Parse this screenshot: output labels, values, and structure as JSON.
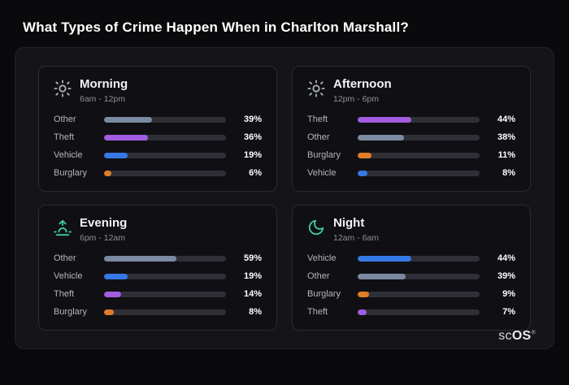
{
  "page": {
    "title": "What Types of Crime Happen When in Charlton Marshall?"
  },
  "brand": {
    "prefix": "sc",
    "suffix": "OS",
    "reg": "®"
  },
  "colors": {
    "other": "#7b8aa1",
    "theft": "#a25de0",
    "vehicle": "#3579e6",
    "burglary": "#e07d28"
  },
  "cards": [
    {
      "title": "Morning",
      "time": "6am - 12pm",
      "icon": "sun-icon",
      "rows": [
        {
          "label": "Other",
          "value": 39,
          "pct": "39%",
          "color": "other"
        },
        {
          "label": "Theft",
          "value": 36,
          "pct": "36%",
          "color": "theft"
        },
        {
          "label": "Vehicle",
          "value": 19,
          "pct": "19%",
          "color": "vehicle"
        },
        {
          "label": "Burglary",
          "value": 6,
          "pct": "6%",
          "color": "burglary"
        }
      ]
    },
    {
      "title": "Afternoon",
      "time": "12pm - 6pm",
      "icon": "sun-icon",
      "rows": [
        {
          "label": "Theft",
          "value": 44,
          "pct": "44%",
          "color": "theft"
        },
        {
          "label": "Other",
          "value": 38,
          "pct": "38%",
          "color": "other"
        },
        {
          "label": "Burglary",
          "value": 11,
          "pct": "11%",
          "color": "burglary"
        },
        {
          "label": "Vehicle",
          "value": 8,
          "pct": "8%",
          "color": "vehicle"
        }
      ]
    },
    {
      "title": "Evening",
      "time": "6pm - 12am",
      "icon": "sunrise-icon",
      "rows": [
        {
          "label": "Other",
          "value": 59,
          "pct": "59%",
          "color": "other"
        },
        {
          "label": "Vehicle",
          "value": 19,
          "pct": "19%",
          "color": "vehicle"
        },
        {
          "label": "Theft",
          "value": 14,
          "pct": "14%",
          "color": "theft"
        },
        {
          "label": "Burglary",
          "value": 8,
          "pct": "8%",
          "color": "burglary"
        }
      ]
    },
    {
      "title": "Night",
      "time": "12am - 6am",
      "icon": "moon-icon",
      "rows": [
        {
          "label": "Vehicle",
          "value": 44,
          "pct": "44%",
          "color": "vehicle"
        },
        {
          "label": "Other",
          "value": 39,
          "pct": "39%",
          "color": "other"
        },
        {
          "label": "Burglary",
          "value": 9,
          "pct": "9%",
          "color": "burglary"
        },
        {
          "label": "Theft",
          "value": 7,
          "pct": "7%",
          "color": "theft"
        }
      ]
    }
  ],
  "chart_data": [
    {
      "type": "bar",
      "title": "Morning",
      "subtitle": "6am - 12pm",
      "categories": [
        "Other",
        "Theft",
        "Vehicle",
        "Burglary"
      ],
      "values": [
        39,
        36,
        19,
        6
      ],
      "unit": "%",
      "xlim": [
        0,
        100
      ],
      "orientation": "horizontal",
      "grid": false,
      "legend": "none"
    },
    {
      "type": "bar",
      "title": "Afternoon",
      "subtitle": "12pm - 6pm",
      "categories": [
        "Theft",
        "Other",
        "Burglary",
        "Vehicle"
      ],
      "values": [
        44,
        38,
        11,
        8
      ],
      "unit": "%",
      "xlim": [
        0,
        100
      ],
      "orientation": "horizontal",
      "grid": false,
      "legend": "none"
    },
    {
      "type": "bar",
      "title": "Evening",
      "subtitle": "6pm - 12am",
      "categories": [
        "Other",
        "Vehicle",
        "Theft",
        "Burglary"
      ],
      "values": [
        59,
        19,
        14,
        8
      ],
      "unit": "%",
      "xlim": [
        0,
        100
      ],
      "orientation": "horizontal",
      "grid": false,
      "legend": "none"
    },
    {
      "type": "bar",
      "title": "Night",
      "subtitle": "12am - 6am",
      "categories": [
        "Vehicle",
        "Other",
        "Burglary",
        "Theft"
      ],
      "values": [
        44,
        39,
        9,
        7
      ],
      "unit": "%",
      "xlim": [
        0,
        100
      ],
      "orientation": "horizontal",
      "grid": false,
      "legend": "none"
    }
  ]
}
